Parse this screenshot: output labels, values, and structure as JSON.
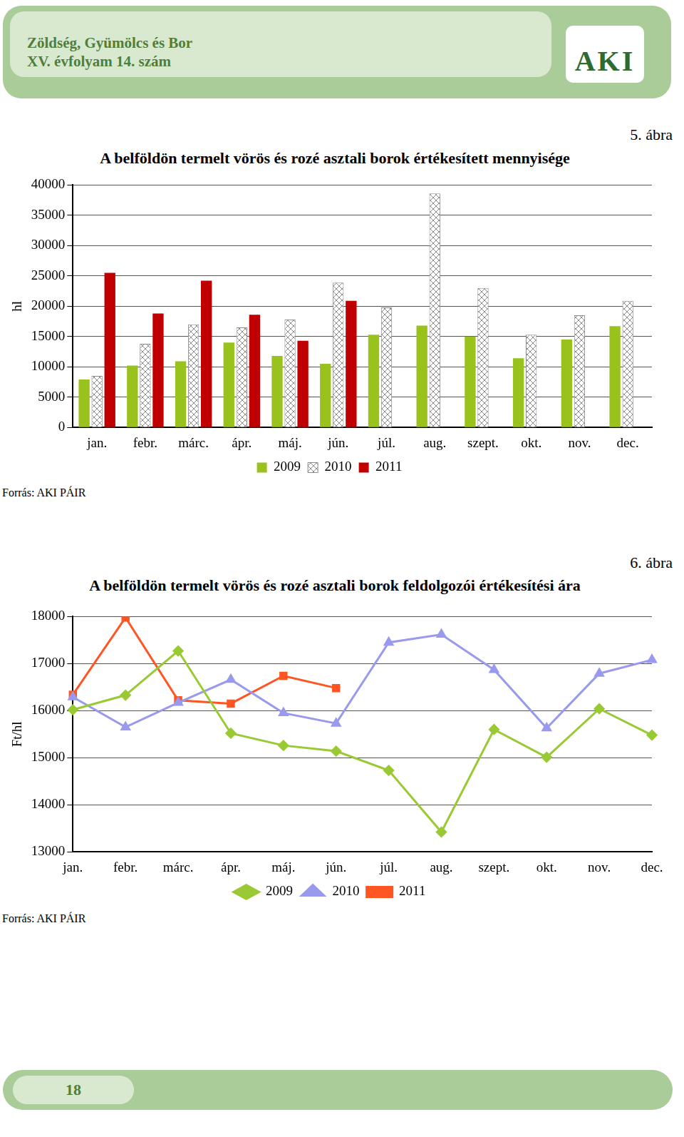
{
  "header": {
    "title": "Zöldség, Gyümölcs és Bor",
    "subtitle": "XV. évfolyam 14. szám",
    "logo": "AKI"
  },
  "chart_data": [
    {
      "type": "bar",
      "figure": "5. ábra",
      "title": "A belföldön termelt vörös és rozé asztali borok értékesített mennyisége",
      "source": "Forrás: AKI PÁIR",
      "y_label": "hl",
      "categories": [
        "jan.",
        "febr.",
        "márc.",
        "ápr.",
        "máj.",
        "jún.",
        "júl.",
        "aug.",
        "szept.",
        "okt.",
        "nov.",
        "dec."
      ],
      "series": [
        {
          "name": "2009",
          "color": "#99c31c",
          "values": [
            7900,
            10200,
            10900,
            14000,
            11800,
            10500,
            15300,
            16800,
            15000,
            11400,
            14500,
            16700
          ]
        },
        {
          "name": "2010",
          "color": "#8c8c8c",
          "values": [
            8500,
            13800,
            17000,
            16500,
            17800,
            23900,
            19800,
            38600,
            23000,
            15300,
            18500,
            20900
          ]
        },
        {
          "name": "2011",
          "color": "#c00000",
          "values": [
            25500,
            18800,
            24200,
            18600,
            14300,
            20900,
            null,
            null,
            null,
            null,
            null,
            null
          ]
        }
      ],
      "ylim": [
        0,
        40000
      ],
      "yticks": [
        0,
        5000,
        10000,
        15000,
        20000,
        25000,
        30000,
        35000,
        40000
      ],
      "grid": true,
      "legend": "bottom"
    },
    {
      "type": "line",
      "figure": "6. ábra",
      "title": "A belföldön termelt  vörös és rozé asztali borok feldolgozói értékesítési ára",
      "source": "Forrás: AKI PÁIR",
      "y_label": "Ft/hl",
      "categories": [
        "jan.",
        "febr.",
        "márc.",
        "ápr.",
        "máj.",
        "jún.",
        "júl.",
        "aug.",
        "szept.",
        "okt.",
        "nov.",
        "dec."
      ],
      "series": [
        {
          "name": "2009",
          "color": "#99c933",
          "marker": "diamond",
          "values": [
            16020,
            16330,
            17270,
            15520,
            15260,
            15140,
            14730,
            13420,
            15600,
            15010,
            16040,
            15480
          ]
        },
        {
          "name": "2010",
          "color": "#9999ee",
          "marker": "triangle",
          "values": [
            16290,
            15650,
            16170,
            16660,
            15950,
            15730,
            17450,
            17620,
            16870,
            15630,
            16790,
            17080
          ]
        },
        {
          "name": "2011",
          "color": "#ff5522",
          "marker": "square",
          "values": [
            16340,
            17980,
            16220,
            16150,
            16740,
            16480,
            null,
            null,
            null,
            null,
            null,
            null
          ]
        }
      ],
      "ylim": [
        13000,
        18000
      ],
      "yticks": [
        13000,
        14000,
        15000,
        16000,
        17000,
        18000
      ],
      "grid": true,
      "legend": "bottom"
    }
  ],
  "footer": {
    "page": 18
  }
}
